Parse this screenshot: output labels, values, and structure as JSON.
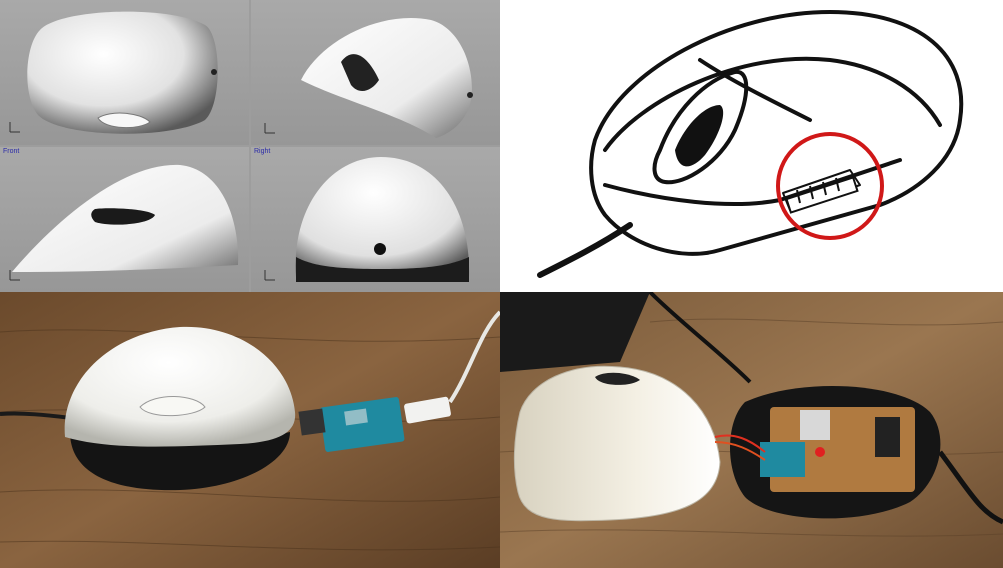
{
  "cad_views": {
    "bottom_left_label": "Front",
    "bottom_right_label": "Right"
  },
  "colors": {
    "cad_background": "#9d9d9d",
    "highlight_circle": "#d01818",
    "shell_white": "#f4f4f2",
    "wood": "#7a5a3a",
    "pcb_blue": "#1f8aa0"
  },
  "icons": [
    "axis-gizmo-icon",
    "mouse-sketch-icon",
    "highlight-circle-icon",
    "arduino-board-icon"
  ]
}
